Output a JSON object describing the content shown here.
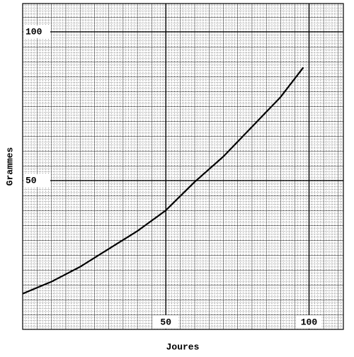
{
  "chart_data": {
    "type": "line",
    "x_label": "Joures",
    "y_label": "Grammes",
    "x": [
      0,
      10,
      20,
      30,
      40,
      50,
      60,
      70,
      80,
      90,
      98
    ],
    "series": [
      {
        "color": "#000000",
        "values": [
          12,
          16,
          21,
          27,
          33,
          40,
          49.5,
          58,
          68,
          78,
          88
        ]
      }
    ],
    "xlim": [
      0,
      112
    ],
    "ylim": [
      0,
      109.5
    ],
    "xticks": [
      50,
      100
    ],
    "yticks": [
      50,
      100
    ],
    "grid": true
  }
}
